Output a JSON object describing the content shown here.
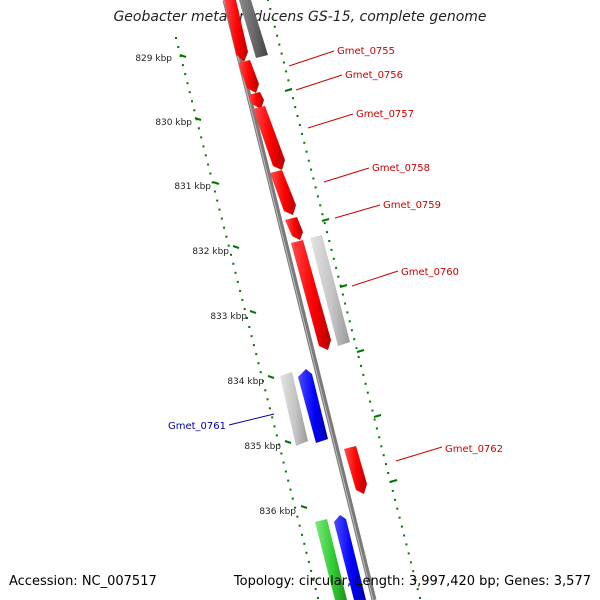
{
  "title": "Geobacter metallireducens GS-15, complete genome",
  "footer": {
    "accession": "Accession: NC_007517",
    "stats": "Topology: circular; Length: 3,997,420 bp; Genes: 3,577"
  },
  "colors": {
    "forward_gene": "#ff0000",
    "reverse_gene": "#0000ff",
    "rna_gene": "#33cc33",
    "pseudo_gene": "#c0c0c0",
    "other_gene": "#666666",
    "backbone": "#808080",
    "tick": "#007700",
    "label_forward": "#cc0000",
    "label_reverse": "#0000aa"
  },
  "kbp_ticks": [
    "829 kbp",
    "830 kbp",
    "831 kbp",
    "832 kbp",
    "833 kbp",
    "834 kbp",
    "835 kbp",
    "836 kbp"
  ],
  "gene_labels": [
    "Gmet_0755",
    "Gmet_0756",
    "Gmet_0757",
    "Gmet_0758",
    "Gmet_0759",
    "Gmet_0760",
    "Gmet_0761",
    "Gmet_0762"
  ]
}
